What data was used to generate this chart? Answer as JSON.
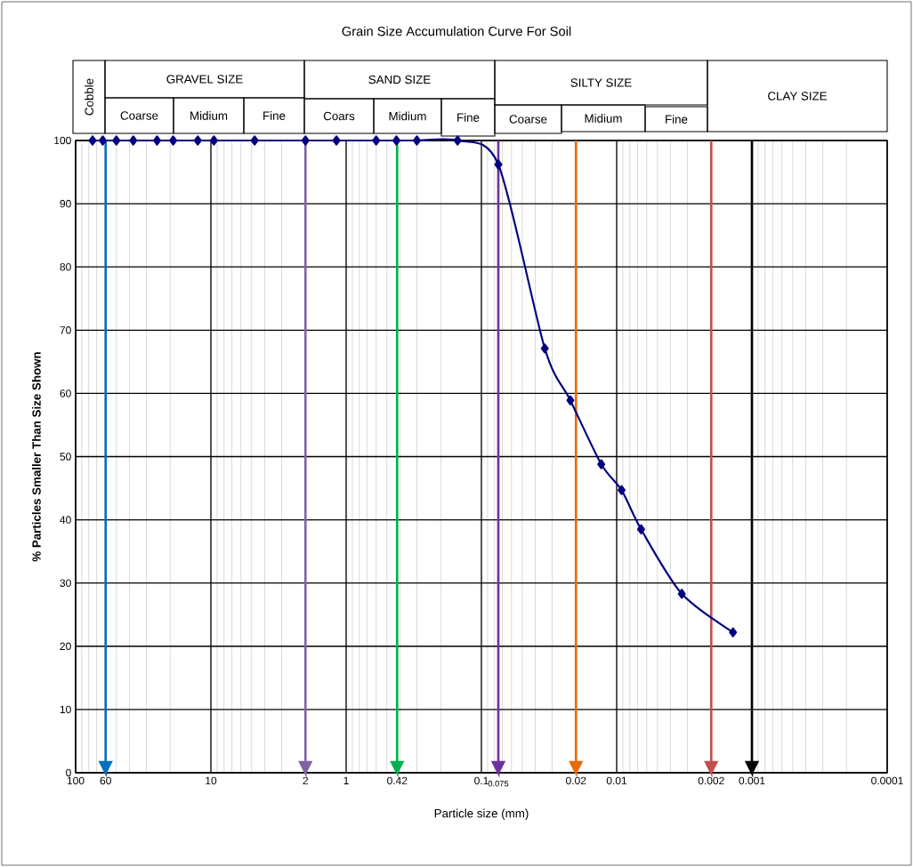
{
  "chart_data": {
    "type": "line",
    "title": "Grain  Size Accumulation Curve  For Soil",
    "xlabel": "Particle size (mm)",
    "ylabel": "% Particles Smaller Than Size Shown",
    "log": "x",
    "grid": true,
    "marker": "diamond",
    "line_style": "solid",
    "xlim": [
      100,
      0.0001
    ],
    "ylim": [
      0,
      100
    ],
    "xticks": [
      100,
      60,
      10,
      2,
      1,
      0.42,
      0.1,
      0.075,
      0.02,
      0.01,
      0.002,
      0.001,
      0.0001
    ],
    "yticks": [
      0,
      10,
      20,
      30,
      40,
      50,
      60,
      70,
      80,
      90,
      100
    ],
    "x": [
      75,
      63,
      50,
      37.5,
      25,
      19,
      12.5,
      9.5,
      4.75,
      2,
      1.18,
      0.6,
      0.425,
      0.3,
      0.15,
      0.075,
      0.034,
      0.022,
      0.013,
      0.0092,
      0.0066,
      0.0033,
      0.00138
    ],
    "series": [
      {
        "color": "#000080",
        "values": [
          100,
          100,
          100,
          100,
          100,
          100,
          100,
          100,
          100,
          100,
          100,
          100,
          100,
          100,
          100,
          96.2,
          67.1,
          58.9,
          48.8,
          44.7,
          38.5,
          28.3,
          22.2
        ]
      }
    ],
    "ref_lines": [
      {
        "axis": "x",
        "value": 60,
        "color": "#0070c0"
      },
      {
        "axis": "x",
        "value": 2,
        "color": "#8064a2"
      },
      {
        "axis": "x",
        "value": 0.42,
        "color": "#00b050"
      },
      {
        "axis": "x",
        "value": 0.075,
        "color": "#7030a0"
      },
      {
        "axis": "x",
        "value": 0.02,
        "color": "#e46c0a"
      },
      {
        "axis": "x",
        "value": 0.002,
        "color": "#c0504d"
      },
      {
        "axis": "x",
        "value": 0.001,
        "color": "#000000"
      }
    ],
    "annotations": [
      "Cobble",
      "GRAVEL SIZE",
      "Coarse",
      "Midium",
      "Fine",
      "SAND SIZE",
      "Coars",
      "Midium",
      "Fine",
      "SILTY SIZE",
      "Coarse",
      "Midium",
      "Fine",
      "CLAY SIZE"
    ]
  }
}
